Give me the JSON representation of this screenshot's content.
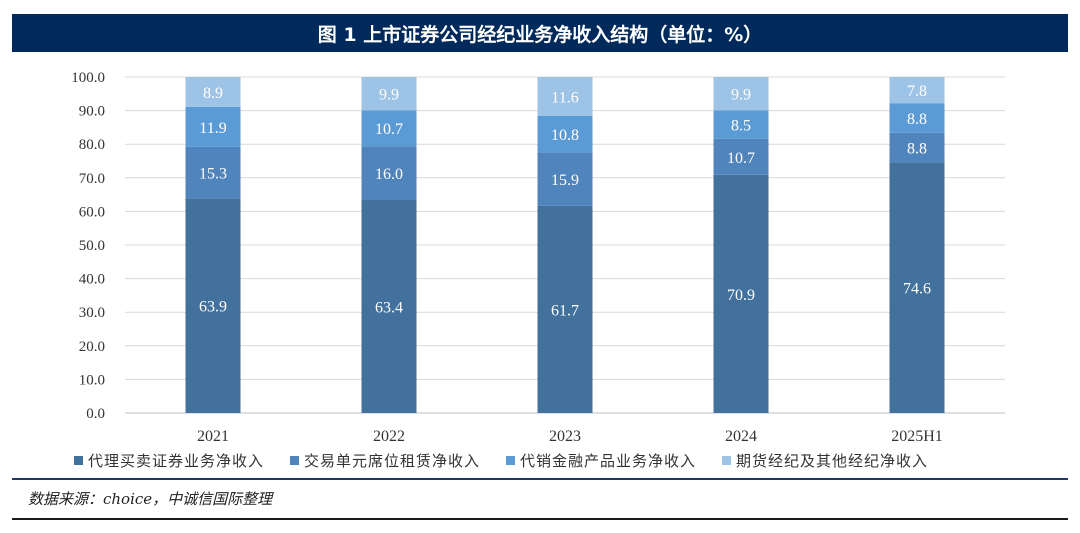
{
  "title": "图 1  上市证券公司经纪业务净收入结构（单位：%）",
  "source": "数据来源：choice，中诚信国际整理",
  "chart_data": {
    "type": "bar",
    "stacked": true,
    "categories": [
      "2021",
      "2022",
      "2023",
      "2024",
      "2025H1"
    ],
    "ylim": [
      0,
      100
    ],
    "yticks": [
      "0.0",
      "10.0",
      "20.0",
      "30.0",
      "40.0",
      "50.0",
      "60.0",
      "70.0",
      "80.0",
      "90.0",
      "100.0"
    ],
    "grid": true,
    "legend_position": "bottom",
    "series": [
      {
        "name": "代理买卖证券业务净收入",
        "color": "#41719c",
        "values": [
          63.9,
          63.4,
          61.7,
          70.9,
          74.6
        ]
      },
      {
        "name": "交易单元席位租赁净收入",
        "color": "#4f84bd",
        "values": [
          15.3,
          16.0,
          15.9,
          10.7,
          8.8
        ]
      },
      {
        "name": "代销金融产品业务净收入",
        "color": "#5b9bd5",
        "values": [
          11.9,
          10.7,
          10.8,
          8.5,
          8.8
        ]
      },
      {
        "name": "期货经纪及其他经纪净收入",
        "color": "#9dc3e6",
        "values": [
          8.9,
          9.9,
          11.6,
          9.9,
          7.8
        ]
      }
    ]
  }
}
